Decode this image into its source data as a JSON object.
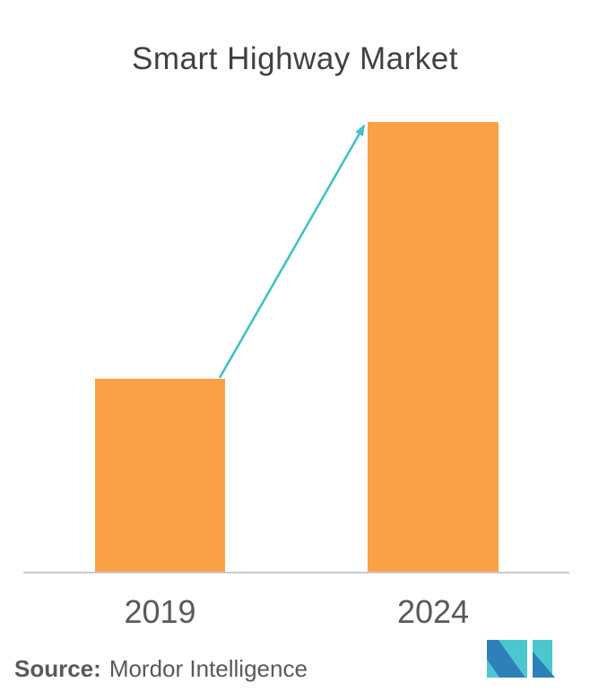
{
  "title": "Smart Highway Market",
  "source": {
    "label": "Source:",
    "text": "Mordor Intelligence"
  },
  "logo": {
    "name": "mordor-intelligence-logo"
  },
  "colors": {
    "background": "#ffffff",
    "bar": "#faa147",
    "arrow": "#44c0c8",
    "axis": "#cbcbcb",
    "title": "#414042",
    "label": "#595959",
    "source": "#58595b",
    "logo_teal": "#4cc7cd",
    "logo_blue": "#2e80b9"
  },
  "chart_data": {
    "type": "bar",
    "title": "Smart Highway Market",
    "categories": [
      "2019",
      "2024"
    ],
    "values": [
      43,
      100
    ],
    "unit": "relative index (2024 = 100; no numeric axis shown)",
    "xlabel": "",
    "ylabel": "",
    "ylim": [
      0,
      100
    ],
    "grid": false,
    "legend": "none",
    "bar_color": "#faa147",
    "annotations": [
      "teal growth arrow from top-right of 2019 bar to top-left of 2024 bar"
    ]
  }
}
